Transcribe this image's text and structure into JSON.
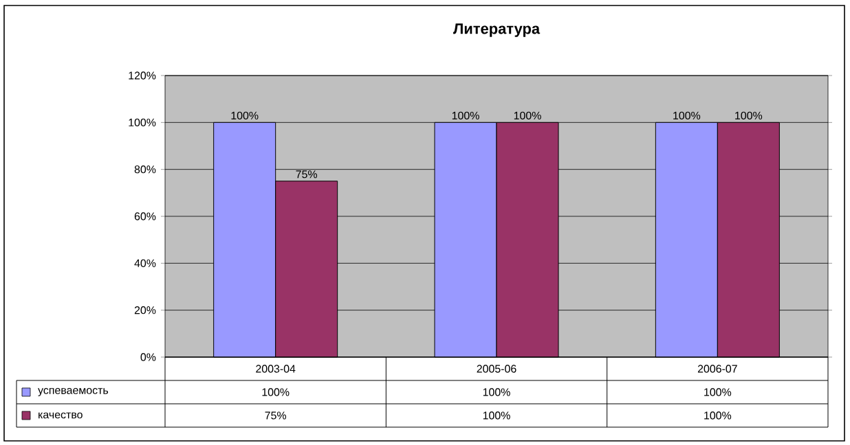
{
  "chart_data": {
    "type": "bar",
    "title": "Литература",
    "categories": [
      "2003-04",
      "2005-06",
      "2006-07"
    ],
    "series": [
      {
        "name": "успеваемость",
        "color": "#9999ff",
        "values": [
          100,
          100,
          100
        ],
        "value_labels": [
          "100%",
          "100%",
          "100%"
        ]
      },
      {
        "name": "качество",
        "color": "#993366",
        "values": [
          75,
          100,
          100
        ],
        "value_labels": [
          "75%",
          "100%",
          "100%"
        ]
      }
    ],
    "ylim": [
      0,
      120
    ],
    "yticks": [
      {
        "value": 0,
        "label": "0%"
      },
      {
        "value": 20,
        "label": "20%"
      },
      {
        "value": 40,
        "label": "40%"
      },
      {
        "value": 60,
        "label": "60%"
      },
      {
        "value": 80,
        "label": "80%"
      },
      {
        "value": 100,
        "label": "100%"
      },
      {
        "value": 120,
        "label": "120%"
      }
    ],
    "grid": "y",
    "legend": "bottom left"
  }
}
